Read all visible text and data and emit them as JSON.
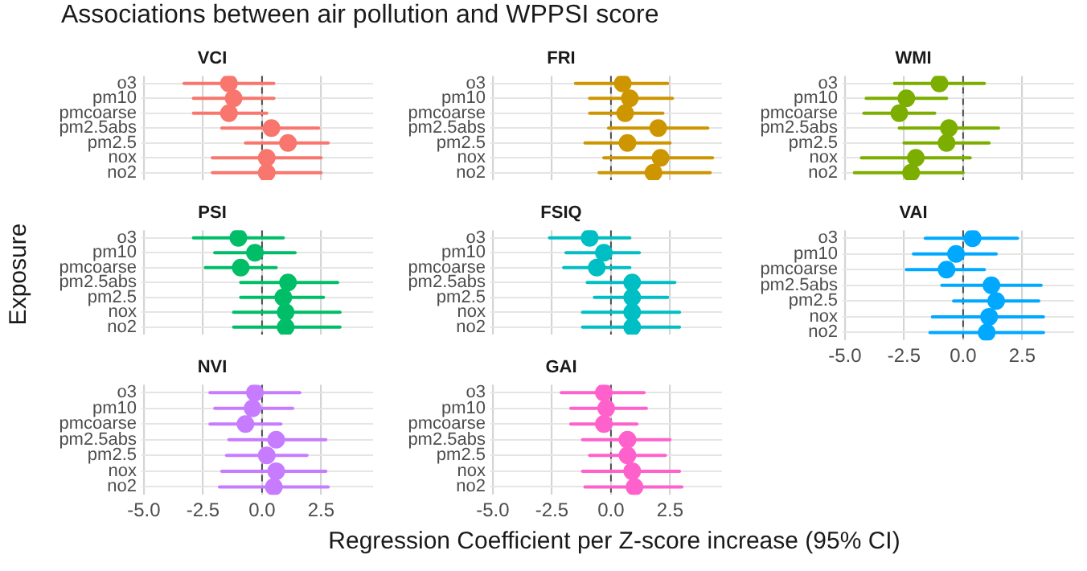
{
  "chart_data": [
    {
      "type": "scatter",
      "orientation": "horizontal",
      "title": "VCI",
      "annotations": [
        "Associations between air pollution and WPPSI score"
      ],
      "categories": [
        "o3",
        "pm10",
        "pmcoarse",
        "pm2.5abs",
        "pm2.5",
        "nox",
        "no2"
      ],
      "values": [
        -1.4,
        -1.2,
        -1.4,
        0.4,
        1.1,
        0.2,
        0.2
      ],
      "errors": [
        [
          -3.3,
          0.5
        ],
        [
          -2.9,
          0.5
        ],
        [
          -2.9,
          0.2
        ],
        [
          -1.7,
          2.4
        ],
        [
          -0.7,
          2.8
        ],
        [
          -2.1,
          2.5
        ],
        [
          -2.1,
          2.5
        ]
      ],
      "color": "#f8766d",
      "xlim": [
        -5.1,
        4.7
      ],
      "xticks": [
        {
          "value": -5,
          "label": null
        },
        {
          "value": -2.5,
          "label": null
        },
        {
          "value": 0,
          "label": null
        },
        {
          "value": 2.5,
          "label": null
        }
      ],
      "tick_labels": "y",
      "grid": true,
      "marker": "circle",
      "ref_lines": [
        {
          "axis": "x",
          "value": 0,
          "color": "#4d4d4d",
          "line_style": "dashed"
        }
      ]
    },
    {
      "type": "scatter",
      "orientation": "horizontal",
      "title": "FRI",
      "categories": [
        "o3",
        "pm10",
        "pmcoarse",
        "pm2.5abs",
        "pm2.5",
        "nox",
        "no2"
      ],
      "values": [
        0.5,
        0.8,
        0.6,
        2.0,
        0.7,
        2.1,
        1.8
      ],
      "errors": [
        [
          -1.5,
          2.4
        ],
        [
          -0.9,
          2.6
        ],
        [
          -0.9,
          2.2
        ],
        [
          -0.1,
          4.1
        ],
        [
          -1.1,
          2.5
        ],
        [
          -0.3,
          4.3
        ],
        [
          -0.5,
          4.2
        ]
      ],
      "color": "#cd9600",
      "xlim": [
        -5.1,
        4.7
      ],
      "xticks": [
        {
          "value": -5,
          "label": null
        },
        {
          "value": -2.5,
          "label": null
        },
        {
          "value": 0,
          "label": null
        },
        {
          "value": 2.5,
          "label": null
        }
      ],
      "tick_labels": "y",
      "grid": true,
      "marker": "circle",
      "ref_lines": [
        {
          "axis": "x",
          "value": 0,
          "color": "#4d4d4d",
          "line_style": "dashed"
        }
      ]
    },
    {
      "type": "scatter",
      "orientation": "horizontal",
      "title": "WMI",
      "categories": [
        "o3",
        "pm10",
        "pmcoarse",
        "pm2.5abs",
        "pm2.5",
        "nox",
        "no2"
      ],
      "values": [
        -1.0,
        -2.4,
        -2.7,
        -0.6,
        -0.7,
        -2.0,
        -2.2
      ],
      "errors": [
        [
          -2.9,
          0.9
        ],
        [
          -4.1,
          -0.7
        ],
        [
          -4.2,
          -1.2
        ],
        [
          -2.7,
          1.5
        ],
        [
          -2.5,
          1.1
        ],
        [
          -4.3,
          0.3
        ],
        [
          -4.6,
          0.0
        ]
      ],
      "color": "#7cae00",
      "xlim": [
        -5.1,
        4.7
      ],
      "xticks": [
        {
          "value": -5,
          "label": null
        },
        {
          "value": -2.5,
          "label": null
        },
        {
          "value": 0,
          "label": null
        },
        {
          "value": 2.5,
          "label": null
        }
      ],
      "tick_labels": "y",
      "grid": true,
      "marker": "circle",
      "ref_lines": [
        {
          "axis": "x",
          "value": 0,
          "color": "#4d4d4d",
          "line_style": "dashed"
        }
      ]
    },
    {
      "type": "scatter",
      "orientation": "horizontal",
      "title": "PSI",
      "ylabel": "Exposure",
      "categories": [
        "o3",
        "pm10",
        "pmcoarse",
        "pm2.5abs",
        "pm2.5",
        "nox",
        "no2"
      ],
      "values": [
        -1.0,
        -0.3,
        -0.9,
        1.1,
        0.9,
        1.0,
        1.0
      ],
      "errors": [
        [
          -2.9,
          0.9
        ],
        [
          -2.0,
          1.4
        ],
        [
          -2.4,
          0.6
        ],
        [
          -0.9,
          3.2
        ],
        [
          -0.9,
          2.6
        ],
        [
          -1.2,
          3.3
        ],
        [
          -1.2,
          3.3
        ]
      ],
      "color": "#00be67",
      "xlim": [
        -5.1,
        4.7
      ],
      "xticks": [
        {
          "value": -5,
          "label": null
        },
        {
          "value": -2.5,
          "label": null
        },
        {
          "value": 0,
          "label": null
        },
        {
          "value": 2.5,
          "label": null
        }
      ],
      "tick_labels": "y",
      "grid": true,
      "marker": "circle",
      "ref_lines": [
        {
          "axis": "x",
          "value": 0,
          "color": "#4d4d4d",
          "line_style": "dashed"
        }
      ]
    },
    {
      "type": "scatter",
      "orientation": "horizontal",
      "title": "FSIQ",
      "categories": [
        "o3",
        "pm10",
        "pmcoarse",
        "pm2.5abs",
        "pm2.5",
        "nox",
        "no2"
      ],
      "values": [
        -0.9,
        -0.3,
        -0.6,
        0.9,
        0.9,
        0.9,
        0.9
      ],
      "errors": [
        [
          -2.6,
          0.8
        ],
        [
          -1.9,
          1.2
        ],
        [
          -2.0,
          0.8
        ],
        [
          -1.0,
          2.7
        ],
        [
          -0.7,
          2.4
        ],
        [
          -1.2,
          2.9
        ],
        [
          -1.2,
          2.9
        ]
      ],
      "color": "#00bfc4",
      "xlim": [
        -5.1,
        4.7
      ],
      "xticks": [
        {
          "value": -5,
          "label": null
        },
        {
          "value": -2.5,
          "label": null
        },
        {
          "value": 0,
          "label": null
        },
        {
          "value": 2.5,
          "label": null
        }
      ],
      "tick_labels": "y",
      "grid": true,
      "marker": "circle",
      "ref_lines": [
        {
          "axis": "x",
          "value": 0,
          "color": "#4d4d4d",
          "line_style": "dashed"
        }
      ]
    },
    {
      "type": "scatter",
      "orientation": "horizontal",
      "title": "VAI",
      "categories": [
        "o3",
        "pm10",
        "pmcoarse",
        "pm2.5abs",
        "pm2.5",
        "nox",
        "no2"
      ],
      "values": [
        0.4,
        -0.3,
        -0.7,
        1.2,
        1.4,
        1.1,
        1.0
      ],
      "errors": [
        [
          -1.6,
          2.3
        ],
        [
          -2.1,
          1.4
        ],
        [
          -2.4,
          0.9
        ],
        [
          -0.9,
          3.3
        ],
        [
          -0.4,
          3.2
        ],
        [
          -1.3,
          3.4
        ],
        [
          -1.4,
          3.4
        ]
      ],
      "color": "#00a9ff",
      "xlim": [
        -5.1,
        4.7
      ],
      "xticks": [
        {
          "value": -5,
          "label": "-5.0"
        },
        {
          "value": -2.5,
          "label": "-2.5"
        },
        {
          "value": 0,
          "label": "0.0"
        },
        {
          "value": 2.5,
          "label": "2.5"
        }
      ],
      "grid": true,
      "marker": "circle",
      "ref_lines": [
        {
          "axis": "x",
          "value": 0,
          "color": "#4d4d4d",
          "line_style": "dashed"
        }
      ]
    },
    {
      "type": "scatter",
      "orientation": "horizontal",
      "title": "NVI",
      "xlabel": "Regression Coefficient per Z-score increase (95% CI)",
      "categories": [
        "o3",
        "pm10",
        "pmcoarse",
        "pm2.5abs",
        "pm2.5",
        "nox",
        "no2"
      ],
      "values": [
        -0.3,
        -0.4,
        -0.7,
        0.6,
        0.2,
        0.6,
        0.5
      ],
      "errors": [
        [
          -2.2,
          1.6
        ],
        [
          -2.0,
          1.3
        ],
        [
          -2.2,
          0.8
        ],
        [
          -1.4,
          2.7
        ],
        [
          -1.5,
          1.9
        ],
        [
          -1.7,
          2.7
        ],
        [
          -1.8,
          2.8
        ]
      ],
      "color": "#c77cff",
      "xlim": [
        -5.1,
        4.7
      ],
      "xticks": [
        {
          "value": -5,
          "label": "-5.0"
        },
        {
          "value": -2.5,
          "label": "-2.5"
        },
        {
          "value": 0,
          "label": "0.0"
        },
        {
          "value": 2.5,
          "label": "2.5"
        }
      ],
      "grid": true,
      "marker": "circle",
      "ref_lines": [
        {
          "axis": "x",
          "value": 0,
          "color": "#4d4d4d",
          "line_style": "dashed"
        }
      ]
    },
    {
      "type": "scatter",
      "orientation": "horizontal",
      "title": "GAI",
      "categories": [
        "o3",
        "pm10",
        "pmcoarse",
        "pm2.5abs",
        "pm2.5",
        "nox",
        "no2"
      ],
      "values": [
        -0.3,
        -0.2,
        -0.3,
        0.7,
        0.7,
        0.9,
        1.0
      ],
      "errors": [
        [
          -2.1,
          1.4
        ],
        [
          -1.7,
          1.5
        ],
        [
          -1.7,
          1.1
        ],
        [
          -1.2,
          2.5
        ],
        [
          -0.9,
          2.3
        ],
        [
          -1.2,
          2.9
        ],
        [
          -1.1,
          3.0
        ]
      ],
      "color": "#ff61cc",
      "xlim": [
        -5.1,
        4.7
      ],
      "xticks": [
        {
          "value": -5,
          "label": "-5.0"
        },
        {
          "value": -2.5,
          "label": "-2.5"
        },
        {
          "value": 0,
          "label": "0.0"
        },
        {
          "value": 2.5,
          "label": "2.5"
        }
      ],
      "grid": true,
      "marker": "circle",
      "ref_lines": [
        {
          "axis": "x",
          "value": 0,
          "color": "#4d4d4d",
          "line_style": "dashed"
        }
      ]
    }
  ]
}
